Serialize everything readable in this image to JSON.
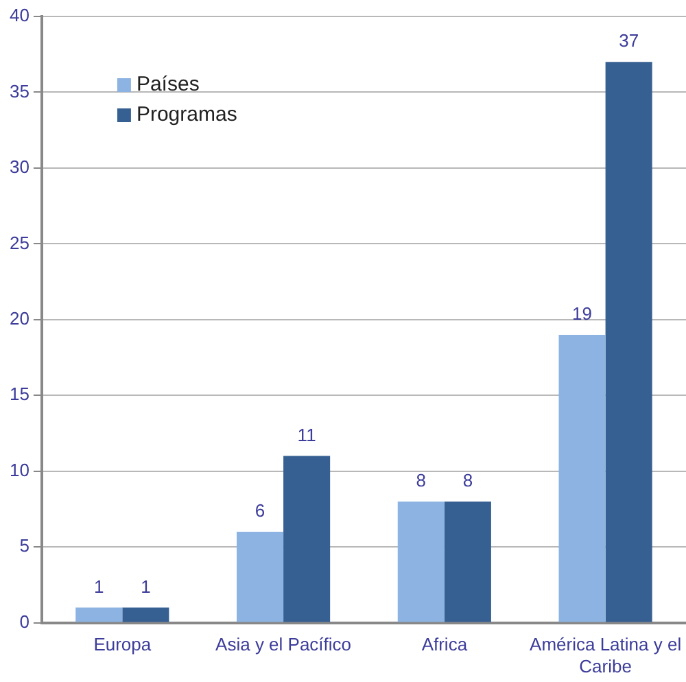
{
  "chart_data": {
    "type": "bar",
    "categories": [
      "Europa",
      "Asia y el Pacífico",
      "Africa",
      "América Latina y el Caribe"
    ],
    "series": [
      {
        "name": "Países",
        "color": "#8db3e2",
        "values": [
          1,
          6,
          8,
          19
        ]
      },
      {
        "name": "Programas",
        "color": "#376092",
        "values": [
          1,
          11,
          8,
          37
        ]
      }
    ],
    "ylim": [
      0,
      40
    ],
    "yticks": [
      0,
      5,
      10,
      15,
      20,
      25,
      30,
      35,
      40
    ],
    "grid": "y",
    "legend": "top left",
    "data_labels": true
  }
}
